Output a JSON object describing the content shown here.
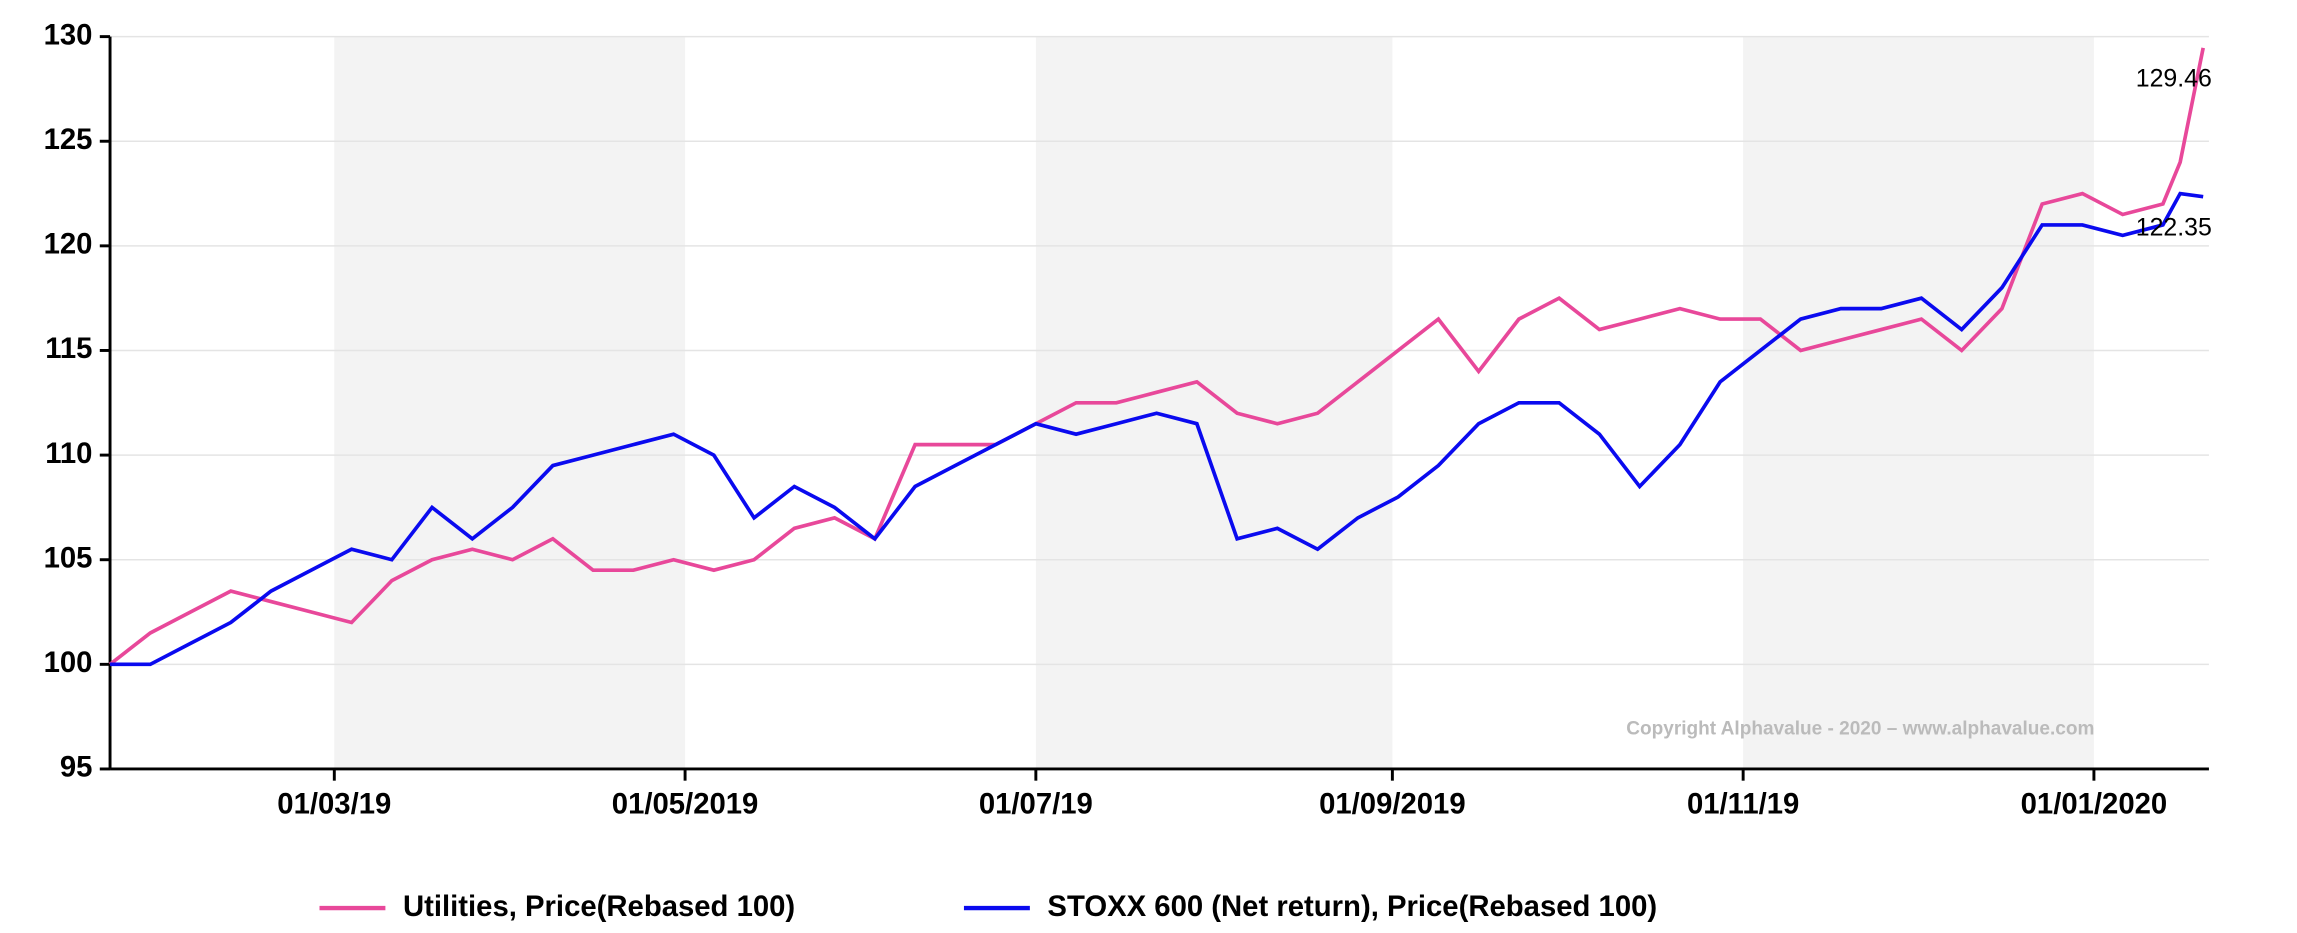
{
  "chart_data": {
    "type": "line",
    "x": [
      "2019-01-21",
      "2019-01-28",
      "2019-02-04",
      "2019-02-11",
      "2019-02-18",
      "2019-02-25",
      "2019-03-04",
      "2019-03-11",
      "2019-03-18",
      "2019-03-25",
      "2019-04-01",
      "2019-04-08",
      "2019-04-15",
      "2019-04-22",
      "2019-04-29",
      "2019-05-06",
      "2019-05-13",
      "2019-05-20",
      "2019-05-27",
      "2019-06-03",
      "2019-06-10",
      "2019-06-17",
      "2019-06-24",
      "2019-07-01",
      "2019-07-08",
      "2019-07-15",
      "2019-07-22",
      "2019-07-29",
      "2019-08-05",
      "2019-08-12",
      "2019-08-19",
      "2019-08-26",
      "2019-09-02",
      "2019-09-09",
      "2019-09-16",
      "2019-09-23",
      "2019-09-30",
      "2019-10-07",
      "2019-10-14",
      "2019-10-21",
      "2019-10-28",
      "2019-11-04",
      "2019-11-11",
      "2019-11-18",
      "2019-11-25",
      "2019-12-02",
      "2019-12-09",
      "2019-12-16",
      "2019-12-23",
      "2019-12-30",
      "2020-01-06",
      "2020-01-13",
      "2020-01-16",
      "2020-01-20"
    ],
    "series": [
      {
        "name": "Utilities, Price(Rebased 100)",
        "color": "#e8489a",
        "values": [
          100,
          101.5,
          102.5,
          103.5,
          103,
          102.5,
          102,
          104,
          105,
          105.5,
          105,
          106,
          104.5,
          104.5,
          105,
          104.5,
          105,
          106.5,
          107,
          106,
          110.5,
          110.5,
          110.5,
          111.5,
          112.5,
          112.5,
          113,
          113.5,
          112,
          111.5,
          112,
          113.5,
          115,
          116.5,
          114,
          116.5,
          117.5,
          116,
          116.5,
          117,
          116.5,
          116.5,
          115,
          115.5,
          116,
          116.5,
          115,
          117,
          122,
          122.5,
          121.5,
          122,
          124,
          129.46
        ]
      },
      {
        "name": "STOXX 600 (Net return), Price(Rebased 100)",
        "color": "#0a0aef",
        "values": [
          100,
          100,
          101,
          102,
          103.5,
          104.5,
          105.5,
          105,
          107.5,
          106,
          107.5,
          109.5,
          110,
          110.5,
          111,
          110,
          107,
          108.5,
          107.5,
          106,
          108.5,
          109.5,
          110.5,
          111.5,
          111,
          111.5,
          112,
          111.5,
          106,
          106.5,
          105.5,
          107,
          108,
          109.5,
          111.5,
          112.5,
          112.5,
          111,
          108.5,
          110.5,
          113.5,
          115,
          116.5,
          117,
          117,
          117.5,
          116,
          118,
          121,
          121,
          120.5,
          121,
          122.5,
          122.35
        ]
      }
    ],
    "xlim": [
      "2019-01-21",
      "2020-01-21"
    ],
    "xticks": [
      {
        "value": "2019-03-01",
        "label": "01/03/19"
      },
      {
        "value": "2019-05-01",
        "label": "01/05/2019"
      },
      {
        "value": "2019-07-01",
        "label": "01/07/19"
      },
      {
        "value": "2019-09-01",
        "label": "01/09/2019"
      },
      {
        "value": "2019-11-01",
        "label": "01/11/19"
      },
      {
        "value": "2020-01-01",
        "label": "01/01/2020"
      }
    ],
    "ylim": [
      95,
      130
    ],
    "yticks": [
      95,
      100,
      105,
      110,
      115,
      120,
      125,
      130
    ],
    "grid": true,
    "annotation": "Copyright Alphavalue - 2020 – www.alphavalue.com",
    "legend": "bottom"
  }
}
